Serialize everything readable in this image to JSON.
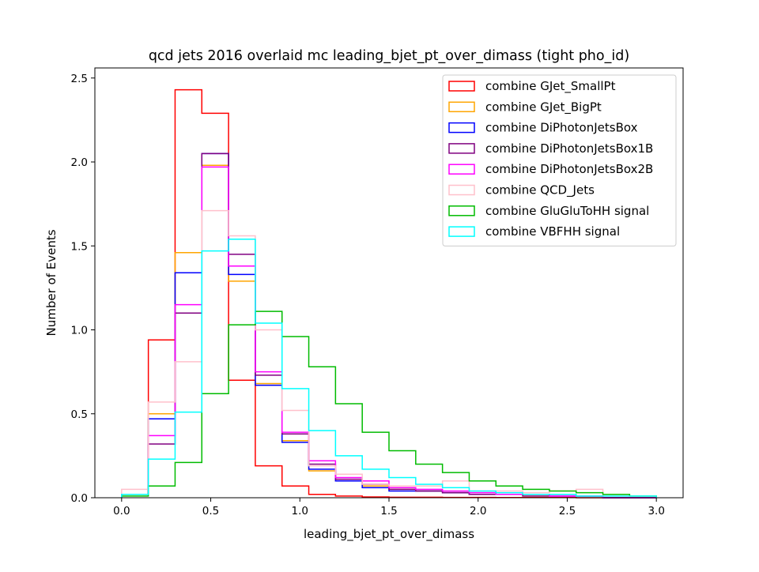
{
  "chart_data": {
    "type": "step-histogram",
    "title": "qcd jets 2016 overlaid mc leading_bjet_pt_over_dimass (tight pho_id)",
    "xlabel": "leading_bjet_pt_over_dimass",
    "ylabel": "Number of Events",
    "xlim": [
      -0.15,
      3.15
    ],
    "ylim": [
      0,
      2.56
    ],
    "xticks": [
      0.0,
      0.5,
      1.0,
      1.5,
      2.0,
      2.5,
      3.0
    ],
    "xtick_labels": [
      "0.0",
      "0.5",
      "1.0",
      "1.5",
      "2.0",
      "2.5",
      "3.0"
    ],
    "yticks": [
      0.0,
      0.5,
      1.0,
      1.5,
      2.0,
      2.5
    ],
    "ytick_labels": [
      "0.0",
      "0.5",
      "1.0",
      "1.5",
      "2.0",
      "2.5"
    ],
    "legend_position": "upper right",
    "bin_edges": [
      0.0,
      0.15,
      0.3,
      0.45,
      0.6,
      0.75,
      0.9,
      1.05,
      1.2,
      1.35,
      1.5,
      1.65,
      1.8,
      1.95,
      2.1,
      2.25,
      2.4,
      2.55,
      2.7,
      2.85,
      3.0
    ],
    "series": [
      {
        "name": "combine GJet_SmallPt",
        "color": "#ff0000",
        "values": [
          0.02,
          0.94,
          2.43,
          2.29,
          0.7,
          0.19,
          0.07,
          0.02,
          0.01,
          0.005,
          0.003,
          0.003,
          0.002,
          0.002,
          0.001,
          0.001,
          0.001,
          0.0,
          0.0,
          0.0
        ]
      },
      {
        "name": "combine GJet_BigPt",
        "color": "#ffa500",
        "values": [
          0.02,
          0.5,
          1.46,
          1.98,
          1.29,
          0.68,
          0.34,
          0.16,
          0.1,
          0.07,
          0.05,
          0.04,
          0.03,
          0.02,
          0.02,
          0.01,
          0.01,
          0.01,
          0.0,
          0.0
        ]
      },
      {
        "name": "combine DiPhotonJetsBox",
        "color": "#0000ff",
        "values": [
          0.02,
          0.47,
          1.34,
          2.05,
          1.33,
          0.67,
          0.33,
          0.17,
          0.1,
          0.06,
          0.04,
          0.04,
          0.03,
          0.02,
          0.02,
          0.02,
          0.01,
          0.01,
          0.0,
          0.0
        ]
      },
      {
        "name": "combine DiPhotonJetsBox1B",
        "color": "#800080",
        "values": [
          0.02,
          0.32,
          1.1,
          2.05,
          1.45,
          0.73,
          0.38,
          0.2,
          0.11,
          0.08,
          0.05,
          0.04,
          0.03,
          0.02,
          0.02,
          0.01,
          0.01,
          0.01,
          0.0,
          0.0
        ]
      },
      {
        "name": "combine DiPhotonJetsBox2B",
        "color": "#ff00ff",
        "values": [
          0.02,
          0.37,
          1.15,
          1.97,
          1.38,
          0.75,
          0.39,
          0.22,
          0.12,
          0.1,
          0.06,
          0.05,
          0.04,
          0.03,
          0.02,
          0.02,
          0.01,
          0.01,
          0.0,
          0.0
        ]
      },
      {
        "name": "combine QCD_Jets",
        "color": "#ffc0cb",
        "values": [
          0.05,
          0.57,
          0.81,
          1.71,
          1.56,
          1.0,
          0.52,
          0.19,
          0.14,
          0.08,
          0.07,
          0.07,
          0.1,
          0.04,
          0.04,
          0.03,
          0.04,
          0.05,
          0.01,
          0.01
        ]
      },
      {
        "name": "combine GluGluToHH signal",
        "color": "#00bb00",
        "values": [
          0.01,
          0.07,
          0.21,
          0.62,
          1.03,
          1.11,
          0.96,
          0.78,
          0.56,
          0.39,
          0.28,
          0.2,
          0.15,
          0.1,
          0.07,
          0.05,
          0.04,
          0.03,
          0.02,
          0.01
        ]
      },
      {
        "name": "combine VBFHH signal",
        "color": "#00ffff",
        "values": [
          0.02,
          0.23,
          0.51,
          1.47,
          1.54,
          1.04,
          0.65,
          0.4,
          0.25,
          0.17,
          0.12,
          0.08,
          0.06,
          0.04,
          0.03,
          0.02,
          0.02,
          0.01,
          0.01,
          0.01
        ]
      }
    ]
  }
}
